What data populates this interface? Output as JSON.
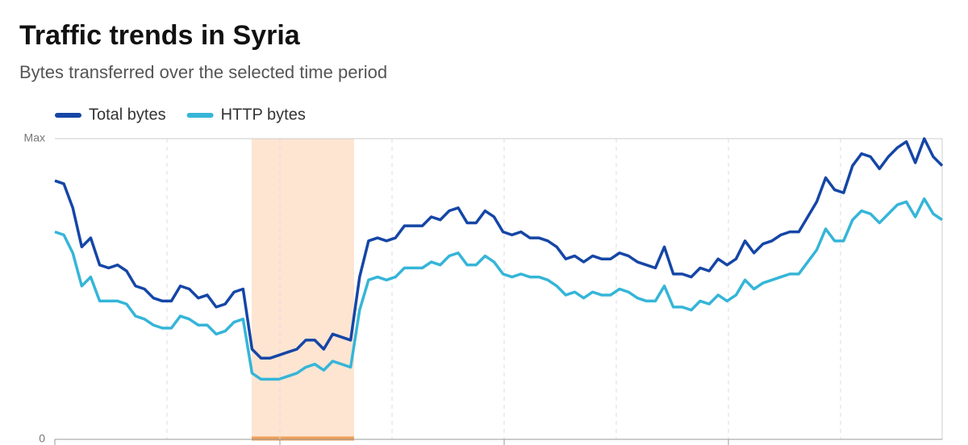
{
  "chart_data": {
    "type": "line",
    "title": "Traffic trends in Syria",
    "subtitle": "Bytes transferred over the selected time period",
    "ylim": [
      0,
      100
    ],
    "yticks": [
      0,
      {
        "value": 100,
        "label": "Max"
      }
    ],
    "legend": "top-left",
    "series": [
      {
        "name": "Total bytes",
        "color": "#1546a6",
        "values": [
          86,
          85,
          77,
          64,
          67,
          58,
          57,
          58,
          56,
          51,
          50,
          47,
          46,
          46,
          51,
          50,
          47,
          48,
          44,
          45,
          49,
          50,
          30,
          27,
          27,
          28,
          29,
          30,
          33,
          33,
          30,
          35,
          34,
          33,
          54,
          66,
          67,
          66,
          67,
          71,
          71,
          71,
          74,
          73,
          76,
          77,
          72,
          72,
          76,
          74,
          69,
          68,
          69,
          67,
          67,
          66,
          64,
          60,
          61,
          59,
          61,
          60,
          60,
          62,
          61,
          59,
          58,
          57,
          64,
          55,
          55,
          54,
          57,
          56,
          60,
          58,
          60,
          66,
          62,
          65,
          66,
          68,
          69,
          69,
          74,
          79,
          87,
          83,
          82,
          91,
          95,
          94,
          90,
          94,
          97,
          99,
          92,
          100,
          94,
          91
        ]
      },
      {
        "name": "HTTP bytes",
        "color": "#35b5d8",
        "values": [
          69,
          68,
          62,
          51,
          54,
          46,
          46,
          46,
          45,
          41,
          40,
          38,
          37,
          37,
          41,
          40,
          38,
          38,
          35,
          36,
          39,
          40,
          22,
          20,
          20,
          20,
          21,
          22,
          24,
          25,
          23,
          26,
          25,
          24,
          43,
          53,
          54,
          53,
          54,
          57,
          57,
          57,
          59,
          58,
          61,
          62,
          58,
          58,
          61,
          59,
          55,
          54,
          55,
          54,
          54,
          53,
          51,
          48,
          49,
          47,
          49,
          48,
          48,
          50,
          49,
          47,
          46,
          46,
          51,
          44,
          44,
          43,
          46,
          45,
          48,
          46,
          48,
          53,
          50,
          52,
          53,
          54,
          55,
          55,
          59,
          63,
          70,
          66,
          66,
          73,
          76,
          75,
          72,
          75,
          78,
          79,
          74,
          80,
          75,
          73
        ]
      }
    ]
  }
}
